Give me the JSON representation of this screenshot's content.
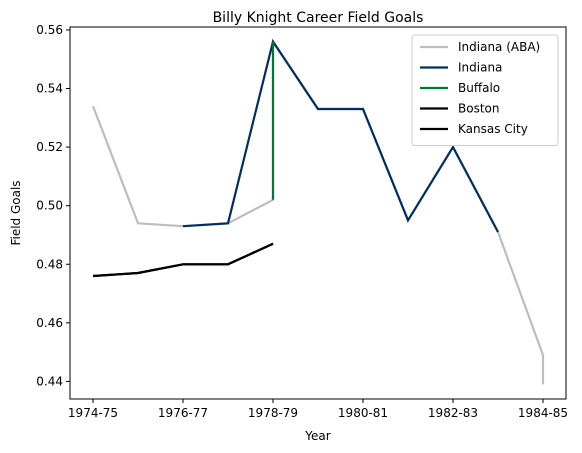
{
  "chart_data": {
    "type": "line",
    "title": "Billy Knight Career Field Goals",
    "xlabel": "Year",
    "ylabel": "Field Goals",
    "xlim": [
      0,
      10
    ],
    "ylim": [
      0.434,
      0.561
    ],
    "x_ticks": [
      {
        "x": 0,
        "label": "1974-75"
      },
      {
        "x": 2,
        "label": "1976-77"
      },
      {
        "x": 4,
        "label": "1978-79"
      },
      {
        "x": 6,
        "label": "1980-81"
      },
      {
        "x": 8,
        "label": "1982-83"
      },
      {
        "x": 10,
        "label": "1984-85"
      }
    ],
    "y_ticks": [
      0.44,
      0.46,
      0.48,
      0.5,
      0.52,
      0.54,
      0.56
    ],
    "grid": false,
    "legend_position": "top-right",
    "series": [
      {
        "name": "Indiana (ABA)",
        "color": "#bdbdbd",
        "points": [
          [
            0,
            0.534
          ],
          [
            1,
            0.494
          ],
          [
            2,
            0.493
          ],
          [
            3,
            0.494
          ],
          [
            4,
            0.502
          ],
          [
            4,
            0.556
          ],
          [
            5,
            0.533
          ],
          [
            6,
            0.533
          ],
          [
            7,
            0.495
          ],
          [
            8,
            0.52
          ],
          [
            9,
            0.491
          ],
          [
            10,
            0.449
          ],
          [
            10,
            0.439
          ]
        ]
      },
      {
        "name": "Indiana",
        "color": "#002d62",
        "points": [
          [
            2,
            0.493
          ],
          [
            3,
            0.494
          ],
          [
            3,
            0.494
          ],
          [
            4,
            0.556
          ],
          [
            5,
            0.533
          ],
          [
            6,
            0.533
          ],
          [
            7,
            0.495
          ],
          [
            8,
            0.52
          ],
          [
            9,
            0.491
          ]
        ]
      },
      {
        "name": "Buffalo",
        "color": "#007a33",
        "points": [
          [
            4,
            0.502
          ],
          [
            4,
            0.556
          ]
        ]
      },
      {
        "name": "Boston",
        "color": "#000000",
        "points": [
          [
            0,
            0.476
          ],
          [
            1,
            0.477
          ],
          [
            2,
            0.48
          ],
          [
            3,
            0.48
          ],
          [
            4,
            0.487
          ]
        ]
      },
      {
        "name": "Kansas City",
        "color": "#000000",
        "points": [
          [
            0,
            0.476
          ],
          [
            1,
            0.477
          ],
          [
            2,
            0.48
          ],
          [
            3,
            0.48
          ],
          [
            4,
            0.487
          ]
        ]
      }
    ]
  }
}
